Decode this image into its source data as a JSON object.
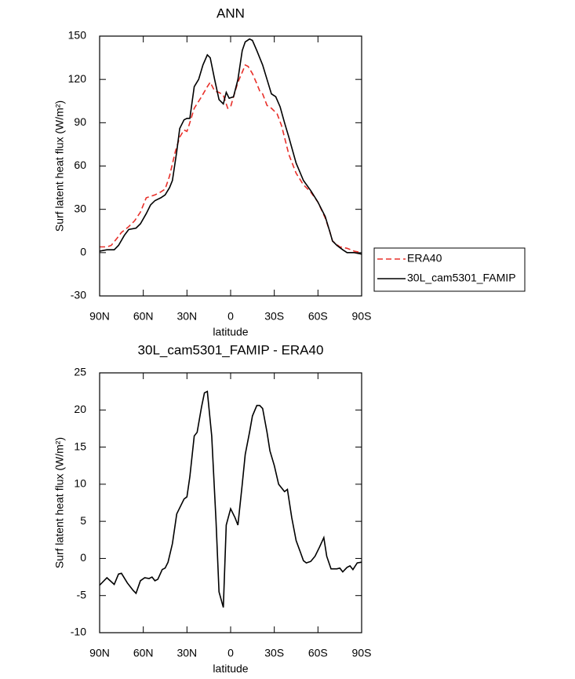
{
  "chart_data": [
    {
      "type": "line",
      "title": "ANN",
      "xlabel": "latitude",
      "ylabel": "Surf latent heat flux (W/m²)",
      "xlim": [
        90,
        -90
      ],
      "xticks": [
        {
          "value": 90,
          "label": "90N"
        },
        {
          "value": 60,
          "label": "60N"
        },
        {
          "value": 30,
          "label": "30N"
        },
        0,
        {
          "value": -30,
          "label": "30S"
        },
        {
          "value": -60,
          "label": "60S"
        },
        {
          "value": -90,
          "label": "90S"
        }
      ],
      "ylim": [
        -30,
        150
      ],
      "yticks": [
        -30,
        0,
        30,
        60,
        90,
        120,
        150
      ],
      "legend": "right",
      "series": [
        {
          "name": "ERA40",
          "color": "#e8302a",
          "dash": true,
          "x": [
            90,
            85,
            82,
            78,
            75,
            70,
            66,
            62,
            58,
            52,
            48,
            45,
            42,
            38,
            35,
            32,
            30,
            28,
            25,
            20,
            16,
            14,
            11,
            8,
            5,
            2,
            0,
            -2,
            -5,
            -8,
            -10,
            -12,
            -15,
            -18,
            -20,
            -22,
            -25,
            -28,
            -32,
            -35,
            -38,
            -40,
            -45,
            -50,
            -55,
            -60,
            -65,
            -68,
            -70,
            -75,
            -80,
            -85,
            -90
          ],
          "values": [
            4,
            4,
            5,
            10,
            14,
            18,
            22,
            28,
            38,
            40,
            42,
            44,
            53,
            70,
            80,
            85,
            84,
            90,
            100,
            108,
            115,
            118,
            112,
            111,
            109,
            100,
            101,
            108,
            118,
            125,
            130,
            129,
            124,
            117,
            112,
            110,
            102,
            100,
            96,
            88,
            76,
            68,
            55,
            47,
            42,
            35,
            24,
            15,
            8,
            4,
            3,
            1,
            0
          ]
        },
        {
          "name": "30L_cam5301_FAMIP",
          "color": "#000000",
          "dash": false,
          "x": [
            90,
            85,
            80,
            77,
            73,
            70,
            65,
            62,
            58,
            55,
            52,
            48,
            45,
            42,
            40,
            37,
            35,
            32,
            30,
            28,
            25,
            22,
            19,
            16,
            14,
            11,
            8,
            5,
            3,
            1,
            -2,
            -5,
            -8,
            -10,
            -13,
            -15,
            -18,
            -22,
            -25,
            -28,
            -31,
            -34,
            -37,
            -40,
            -45,
            -50,
            -55,
            -60,
            -65,
            -68,
            -70,
            -73,
            -77,
            -80,
            -85,
            -90
          ],
          "values": [
            1,
            2,
            2,
            5,
            12,
            16,
            17,
            20,
            27,
            33,
            36,
            38,
            40,
            45,
            50,
            70,
            86,
            92,
            93,
            93,
            115,
            120,
            130,
            137,
            135,
            120,
            106,
            103,
            111,
            107,
            108,
            120,
            140,
            146,
            148,
            147,
            140,
            130,
            120,
            110,
            108,
            101,
            90,
            80,
            62,
            50,
            43,
            35,
            25,
            15,
            8,
            5,
            2,
            0,
            0,
            -1
          ]
        }
      ]
    },
    {
      "type": "line",
      "title": "30L_cam5301_FAMIP - ERA40",
      "xlabel": "latitude",
      "ylabel": "Surf latent heat flux (W/m²)",
      "xlim": [
        90,
        -90
      ],
      "xticks": [
        {
          "value": 90,
          "label": "90N"
        },
        {
          "value": 60,
          "label": "60N"
        },
        {
          "value": 30,
          "label": "30N"
        },
        0,
        {
          "value": -30,
          "label": "30S"
        },
        {
          "value": -60,
          "label": "60S"
        },
        {
          "value": -90,
          "label": "90S"
        }
      ],
      "ylim": [
        -10,
        25
      ],
      "yticks": [
        -10,
        -5,
        0,
        5,
        10,
        15,
        20,
        25
      ],
      "series": [
        {
          "color": "#000000",
          "dash": false,
          "x": [
            90,
            85,
            80,
            77,
            75,
            71,
            67,
            65,
            62,
            59,
            56,
            54,
            52,
            50,
            47,
            45,
            43,
            40,
            37,
            32,
            30,
            28,
            25,
            23,
            20,
            18,
            16,
            13,
            10,
            8,
            5,
            3,
            0,
            -3,
            -5,
            -8,
            -10,
            -13,
            -15,
            -18,
            -20,
            -22,
            -25,
            -27,
            -30,
            -33,
            -37,
            -39,
            -42,
            -45,
            -48,
            -50,
            -52,
            -55,
            -58,
            -61,
            -64,
            -66,
            -69,
            -73,
            -75,
            -77,
            -80,
            -82,
            -84,
            -87,
            -90
          ],
          "values": [
            -3.6,
            -2.6,
            -3.5,
            -2.1,
            -2,
            -3.3,
            -4.3,
            -4.7,
            -3,
            -2.6,
            -2.7,
            -2.5,
            -3,
            -2.8,
            -1.5,
            -1.3,
            -0.5,
            2,
            6,
            8,
            8.3,
            11,
            16.5,
            17,
            20.4,
            22.3,
            22.5,
            16.5,
            5,
            -4.5,
            -6.6,
            4.5,
            6.7,
            5.5,
            4.5,
            10,
            14,
            17,
            19.2,
            20.6,
            20.6,
            20.2,
            17,
            14.5,
            12.5,
            10,
            9,
            9.3,
            5.5,
            2.4,
            0.8,
            -0.3,
            -0.6,
            -0.4,
            0.3,
            1.5,
            2.8,
            0.3,
            -1.4,
            -1.4,
            -1.3,
            -1.8,
            -1.2,
            -1,
            -1.5,
            -0.6,
            -0.5
          ]
        }
      ]
    }
  ]
}
